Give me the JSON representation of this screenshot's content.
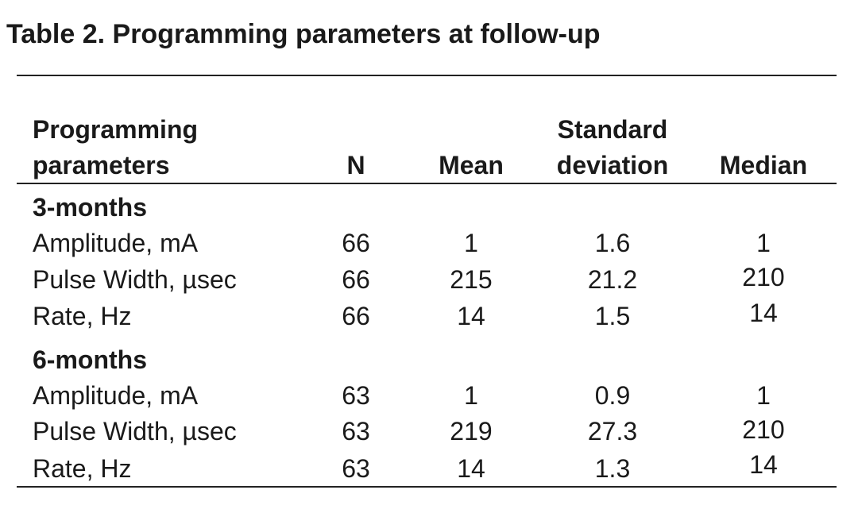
{
  "title": "Table 2. Programming parameters at follow-up",
  "header": {
    "param_line1": "Programming",
    "param_line2": "parameters",
    "n": "N",
    "mean": "Mean",
    "sd_line1": "Standard",
    "sd_line2": "deviation",
    "median": "Median"
  },
  "groups": [
    {
      "label": "3-months",
      "rows": [
        {
          "param": "Amplitude, mA",
          "n": "66",
          "mean": "1",
          "sd": "1.6",
          "median": "1"
        },
        {
          "param": "Pulse Width, µsec",
          "n": "66",
          "mean": "215",
          "sd": "21.2",
          "median": "210"
        },
        {
          "param": "Rate, Hz",
          "n": "66",
          "mean": "14",
          "sd": "1.5",
          "median": "14"
        }
      ]
    },
    {
      "label": "6-months",
      "rows": [
        {
          "param": "Amplitude, mA",
          "n": "63",
          "mean": "1",
          "sd": "0.9",
          "median": "1"
        },
        {
          "param": "Pulse Width, µsec",
          "n": "63",
          "mean": "219",
          "sd": "27.3",
          "median": "210"
        },
        {
          "param": "Rate, Hz",
          "n": "63",
          "mean": "14",
          "sd": "1.3",
          "median": "14"
        }
      ]
    }
  ]
}
